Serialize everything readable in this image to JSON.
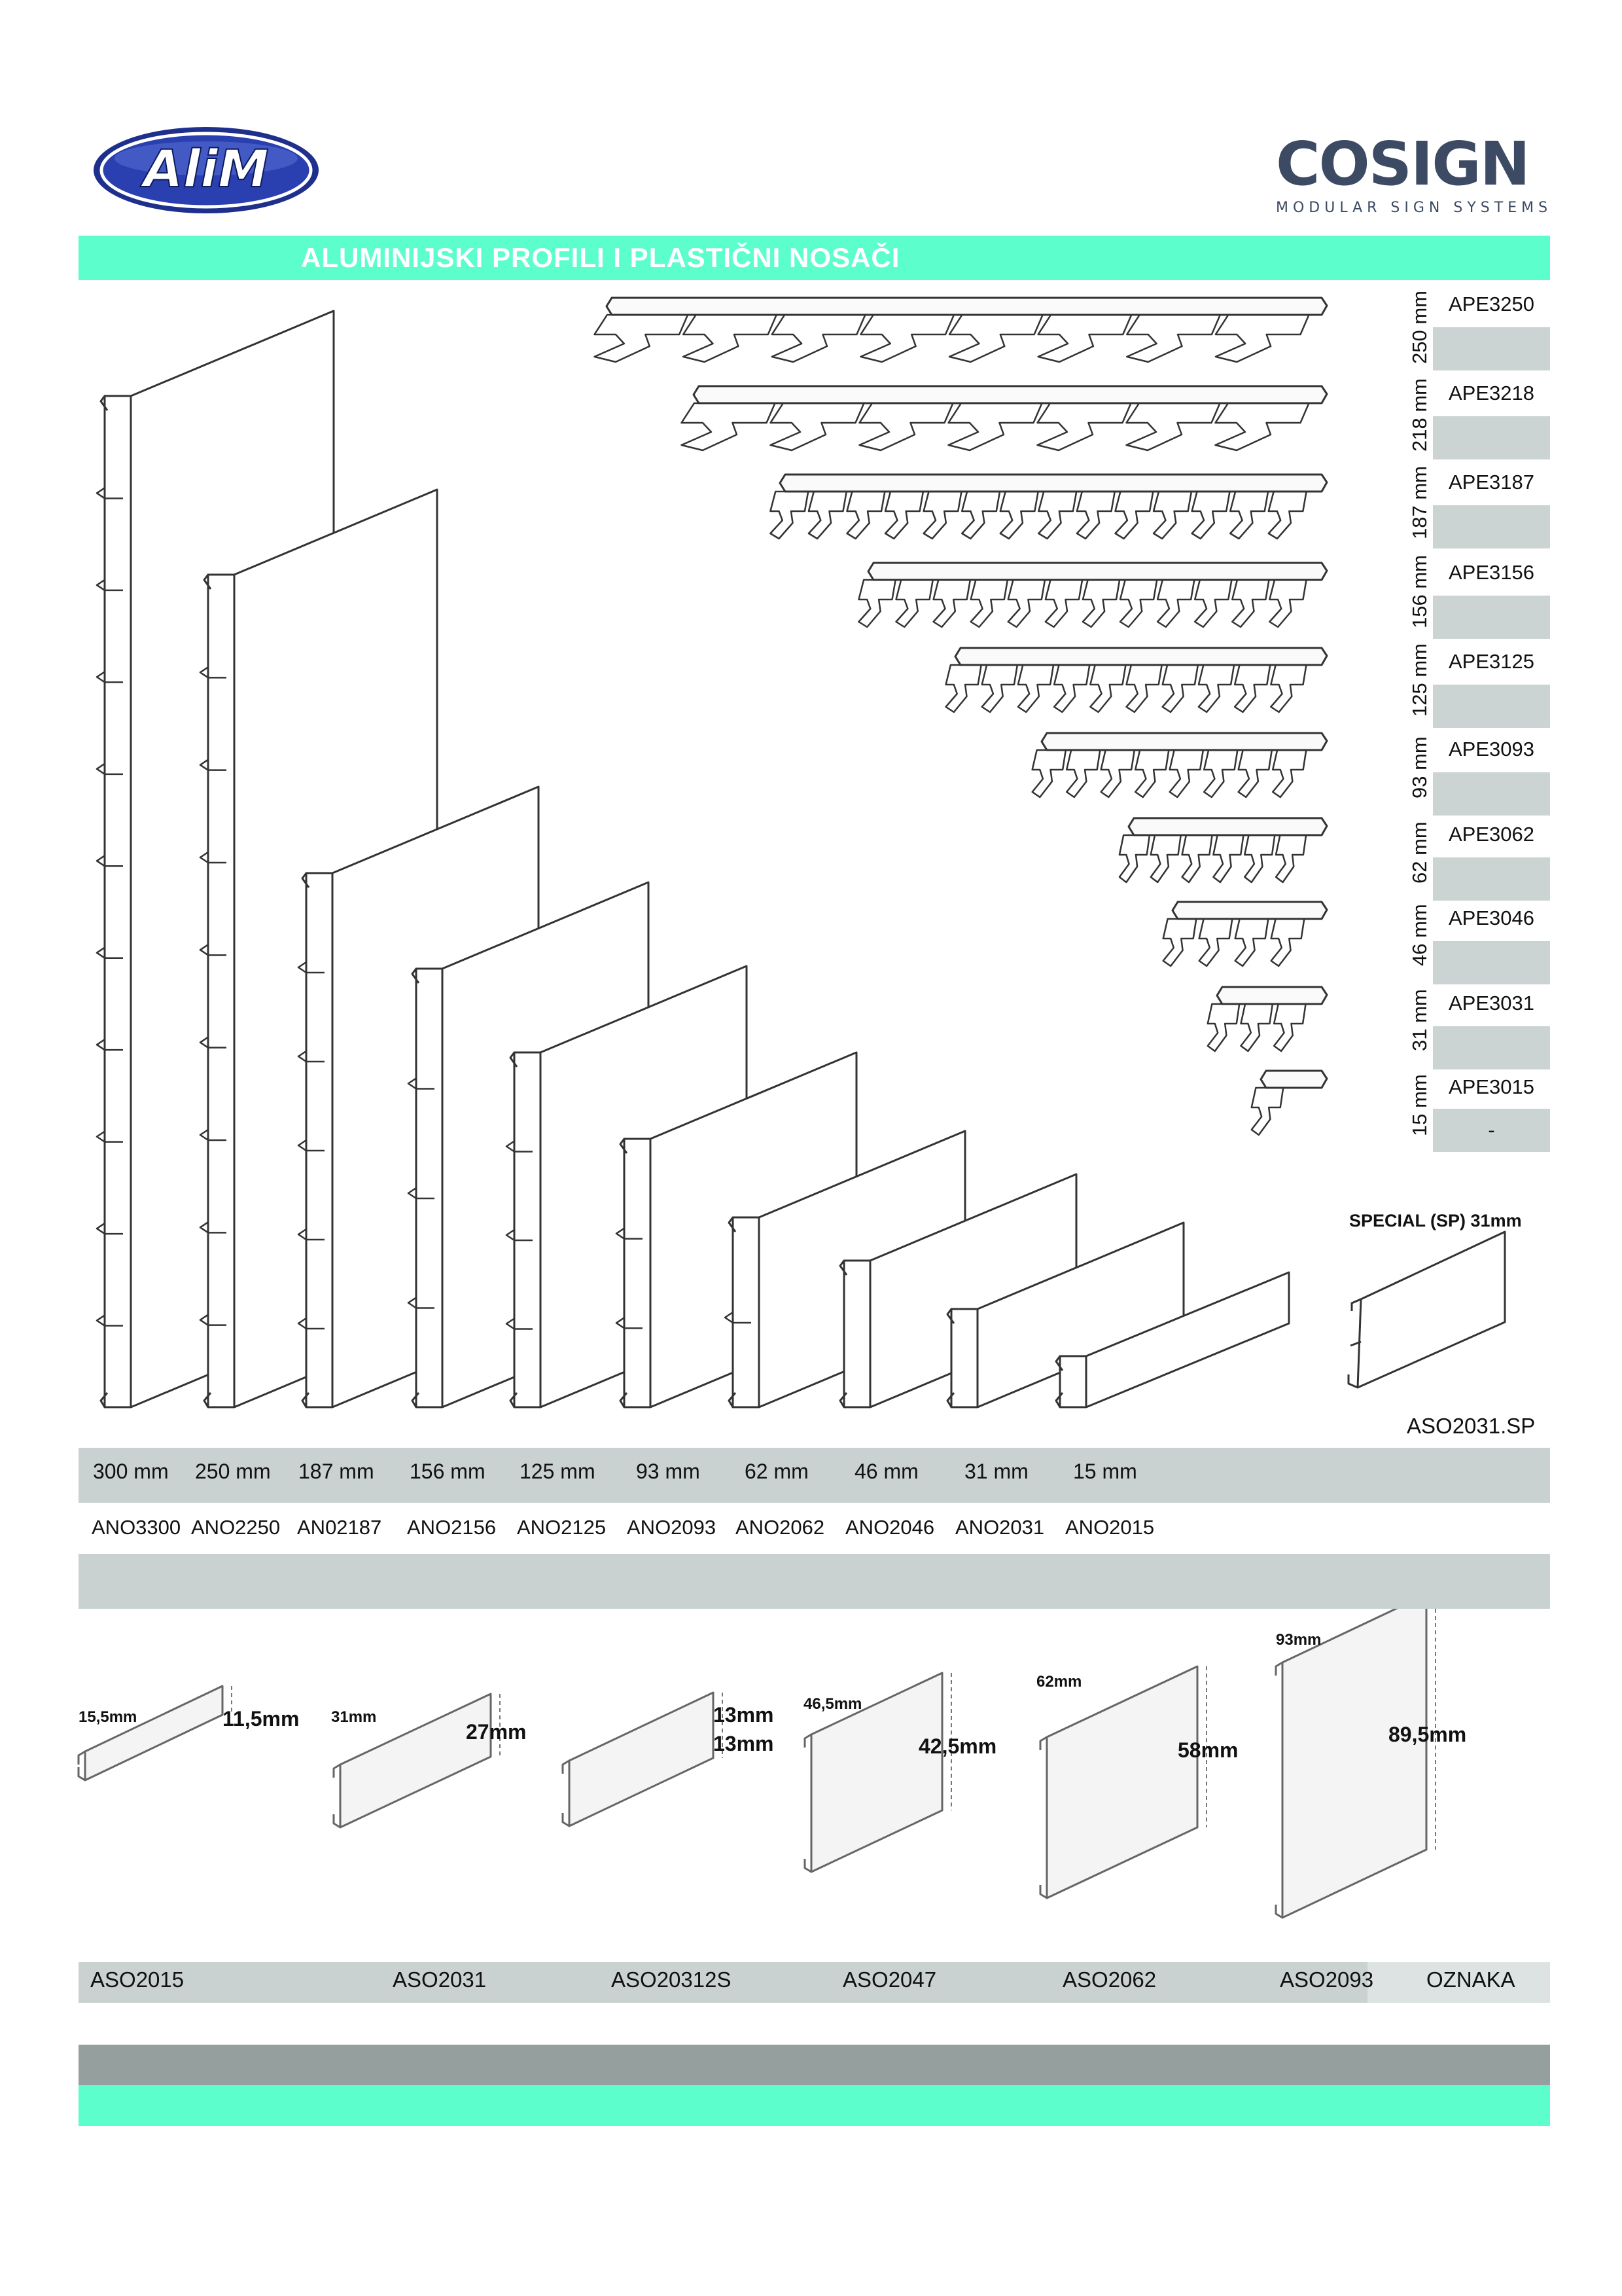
{
  "title": "ALUMINIJSKI PROFILI I PLASTIČNI NOSAČI",
  "brands": {
    "left_logo": "AliM",
    "right_logo": "COSIGN",
    "right_tagline": "MODULAR SIGN SYSTEMS"
  },
  "carriers": [
    {
      "size": "250 mm",
      "code": "APE3250"
    },
    {
      "size": "218 mm",
      "code": "APE3218"
    },
    {
      "size": "187 mm",
      "code": "APE3187"
    },
    {
      "size": "156 mm",
      "code": "APE3156"
    },
    {
      "size": "125 mm",
      "code": "APE3125"
    },
    {
      "size": "93 mm",
      "code": "APE3093"
    },
    {
      "size": "62 mm",
      "code": "APE3062"
    },
    {
      "size": "46 mm",
      "code": "APE3046"
    },
    {
      "size": "31 mm",
      "code": "APE3031"
    },
    {
      "size": "15 mm",
      "code": "APE3015"
    }
  ],
  "carrier_last_cell": "-",
  "special": {
    "caption": "SPECIAL (SP) 31mm",
    "code": "ASO2031.SP"
  },
  "profiles": {
    "sizes": [
      "300 mm",
      "250 mm",
      "187 mm",
      "156 mm",
      "125 mm",
      "93 mm",
      "62 mm",
      "46 mm",
      "31 mm",
      "15 mm"
    ],
    "codes": [
      "ANO3300",
      "ANO2250",
      "AN02187",
      "ANO2156",
      "ANO2125",
      "ANO2093",
      "ANO2062",
      "ANO2046",
      "ANO2031",
      "ANO2015"
    ]
  },
  "aso_items": [
    {
      "code": "ASO2015",
      "width": "15,5mm",
      "height": "11,5mm"
    },
    {
      "code": "ASO2031",
      "width": "31mm",
      "height": "27mm"
    },
    {
      "code": "ASO20312S",
      "height_a": "13mm",
      "height_b": "13mm"
    },
    {
      "code": "ASO2047",
      "width": "46,5mm",
      "height": "42,5mm"
    },
    {
      "code": "ASO2062",
      "width": "62mm",
      "height": "58mm"
    },
    {
      "code": "ASO2093",
      "width": "93mm",
      "height": "89,5mm"
    }
  ],
  "oznaka": "OZNAKA"
}
